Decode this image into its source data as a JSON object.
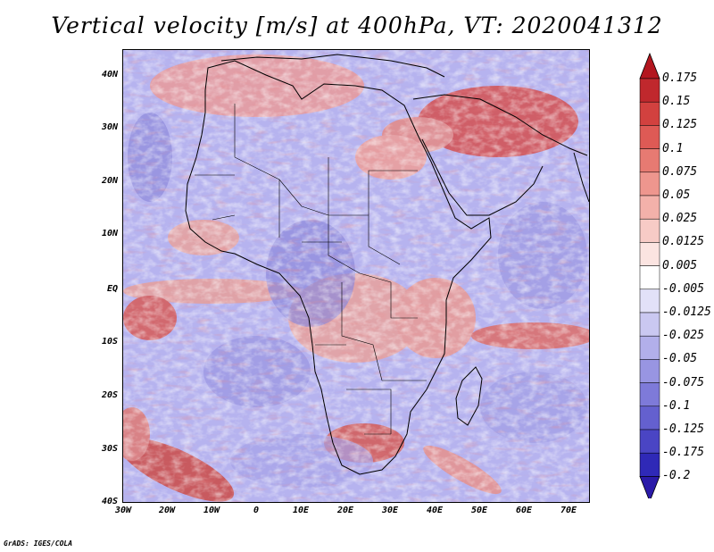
{
  "title": "Vertical velocity [m/s] at 400hPa, VT: 2020041312",
  "footer": "GrADS: IGES/COLA",
  "lat_labels": [
    "40N",
    "30N",
    "20N",
    "10N",
    "EQ",
    "10S",
    "20S",
    "30S",
    "40S"
  ],
  "lon_labels": [
    "30W",
    "20W",
    "10W",
    "0",
    "10E",
    "20E",
    "30E",
    "40E",
    "50E",
    "60E",
    "70E"
  ],
  "colorbar": {
    "labels": [
      "0.175",
      "0.15",
      "0.125",
      "0.1",
      "0.075",
      "0.05",
      "0.025",
      "0.0125",
      "0.005",
      "-0.005",
      "-0.0125",
      "-0.025",
      "-0.05",
      "-0.075",
      "-0.1",
      "-0.125",
      "-0.175",
      "-0.2"
    ],
    "colors": [
      "#c0282d",
      "#d2413f",
      "#de5a55",
      "#e77a72",
      "#ee968e",
      "#f3b1aa",
      "#f7cbc6",
      "#fbe4e1",
      "#ffffff",
      "#e2e1f8",
      "#cac8f1",
      "#b2afea",
      "#9895e2",
      "#7e7ad9",
      "#6460cf",
      "#4a45c4",
      "#2f29b7"
    ],
    "arrow_top": "#b3161f",
    "arrow_bottom": "#2a1aa8"
  }
}
